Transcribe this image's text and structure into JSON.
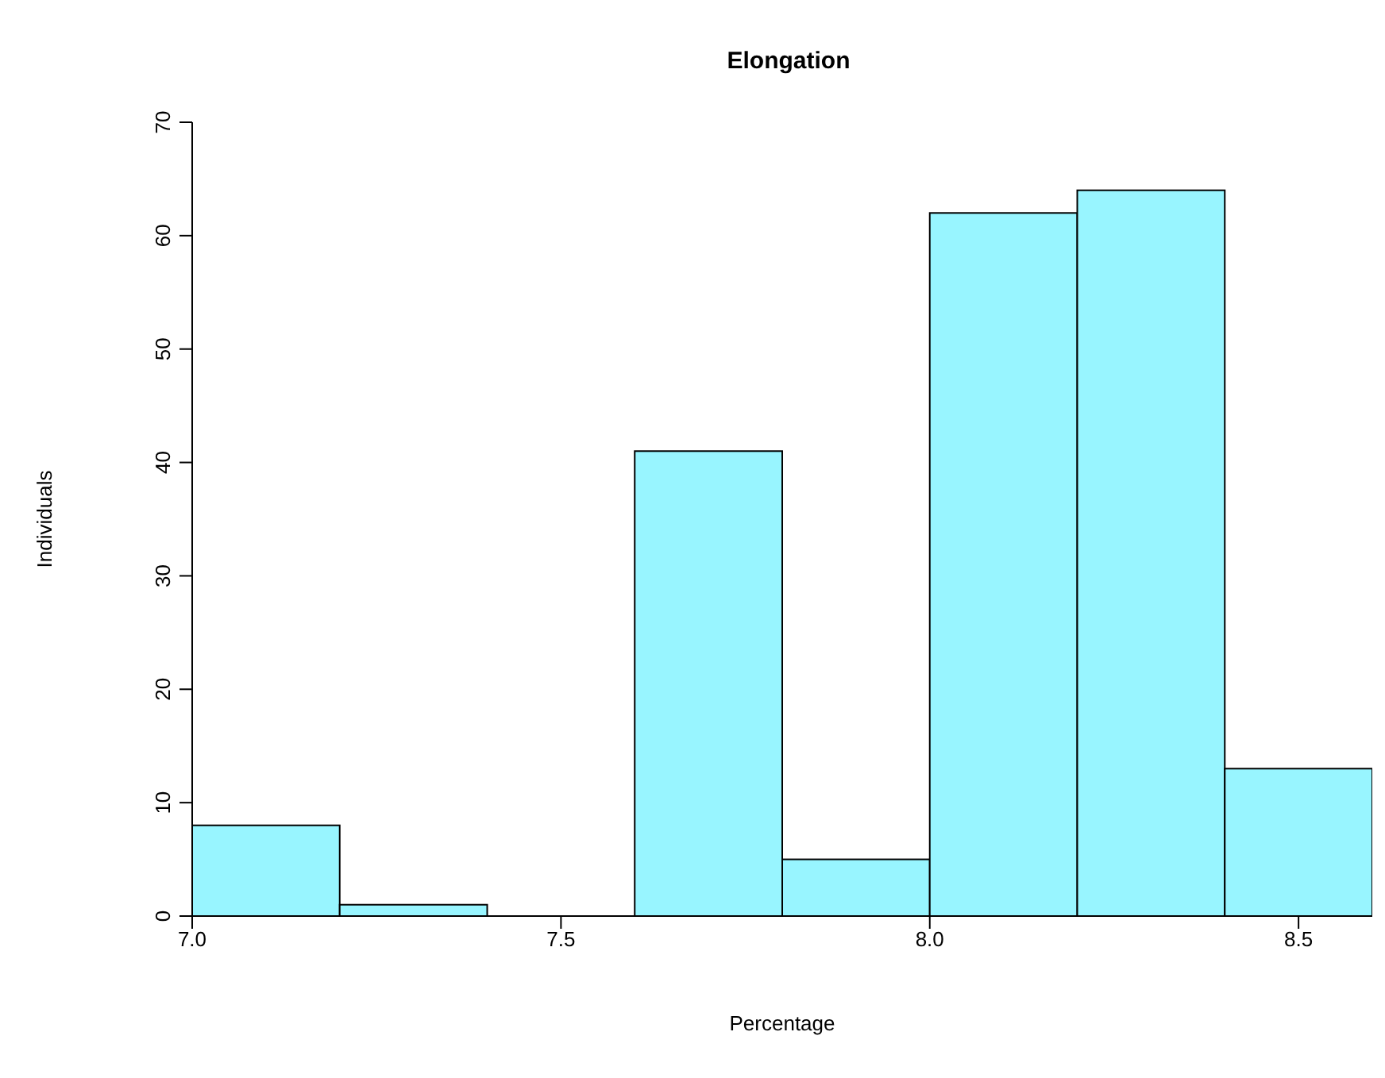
{
  "chart_data": {
    "type": "histogram",
    "title": "Elongation",
    "xlabel": "Percentage",
    "ylabel": "Individuals",
    "bins": [
      7.0,
      7.2,
      7.4,
      7.6,
      7.8,
      8.0,
      8.2,
      8.4,
      8.6
    ],
    "values": [
      8,
      1,
      0,
      41,
      5,
      62,
      64,
      13
    ],
    "color": "#98f5ff",
    "xlim": [
      7.0,
      8.6
    ],
    "xticks": [
      {
        "value": 7.0,
        "label": "7.0"
      },
      {
        "value": 7.5,
        "label": "7.5"
      },
      {
        "value": 8.0,
        "label": "8.0"
      },
      {
        "value": 8.5,
        "label": "8.5"
      }
    ],
    "ylim": [
      0,
      70
    ],
    "yticks": [
      0,
      10,
      20,
      30,
      40,
      50,
      60,
      70
    ],
    "grid": false
  }
}
